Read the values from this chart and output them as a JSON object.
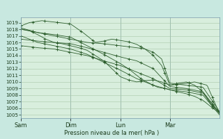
{
  "background_color": "#c8e8e0",
  "plot_bg_color": "#d8eedd",
  "grid_color": "#a8c8a8",
  "line_color": "#2d5e2d",
  "xlabel": "Pression niveau de la mer( hPa )",
  "ylim": [
    1004.5,
    1019.8
  ],
  "yticks": [
    1005,
    1006,
    1007,
    1008,
    1009,
    1010,
    1011,
    1012,
    1013,
    1014,
    1015,
    1016,
    1017,
    1018,
    1019
  ],
  "day_labels": [
    "Sam",
    "Dim",
    "Lun",
    "Mar"
  ],
  "day_positions": [
    0,
    24,
    48,
    72
  ],
  "total_hours": 96,
  "ctrl_lines": [
    {
      "x": [
        0,
        4,
        10,
        16,
        24,
        30,
        36,
        40,
        44,
        48,
        52,
        56,
        60,
        64,
        68,
        72,
        78,
        84,
        90,
        96
      ],
      "y": [
        1018.5,
        1019.0,
        1019.3,
        1019.1,
        1018.8,
        1017.5,
        1016.0,
        1016.2,
        1016.5,
        1016.3,
        1016.1,
        1015.7,
        1015.0,
        1014.0,
        1012.5,
        1009.5,
        1009.7,
        1010.0,
        1009.5,
        1005.2
      ]
    },
    {
      "x": [
        0,
        8,
        16,
        24,
        32,
        40,
        48,
        56,
        60,
        64,
        68,
        72,
        80,
        88,
        96
      ],
      "y": [
        1018.2,
        1017.5,
        1017.0,
        1016.5,
        1016.0,
        1015.8,
        1015.5,
        1015.2,
        1015.0,
        1014.5,
        1013.5,
        1009.8,
        1009.5,
        1009.2,
        1005.5
      ]
    },
    {
      "x": [
        0,
        8,
        16,
        24,
        32,
        40,
        48,
        56,
        64,
        72,
        80,
        88,
        96
      ],
      "y": [
        1016.5,
        1016.2,
        1016.0,
        1015.8,
        1015.2,
        1014.5,
        1013.8,
        1013.2,
        1012.0,
        1009.3,
        1009.0,
        1008.5,
        1005.3
      ]
    },
    {
      "x": [
        0,
        8,
        16,
        24,
        32,
        40,
        48,
        56,
        64,
        72,
        80,
        88,
        96
      ],
      "y": [
        1015.5,
        1015.2,
        1015.0,
        1014.5,
        1014.0,
        1013.2,
        1012.5,
        1011.5,
        1010.5,
        1009.0,
        1008.8,
        1008.3,
        1005.2
      ]
    },
    {
      "x": [
        0,
        8,
        16,
        24,
        32,
        40,
        48,
        56,
        64,
        72,
        80,
        88,
        96
      ],
      "y": [
        1017.0,
        1016.0,
        1015.5,
        1015.0,
        1014.2,
        1013.0,
        1011.8,
        1010.5,
        1009.5,
        1008.8,
        1008.5,
        1008.0,
        1005.0
      ]
    },
    {
      "x": [
        0,
        4,
        8,
        12,
        16,
        20,
        24,
        28,
        32,
        36,
        40,
        44,
        48,
        52,
        56,
        60,
        64,
        68,
        72,
        76,
        80,
        84,
        88,
        92,
        96
      ],
      "y": [
        1018.0,
        1017.8,
        1017.2,
        1016.5,
        1016.0,
        1015.8,
        1015.5,
        1015.2,
        1014.8,
        1014.0,
        1013.2,
        1012.0,
        1010.8,
        1010.3,
        1010.0,
        1010.2,
        1010.3,
        1010.0,
        1009.5,
        1009.8,
        1010.0,
        1009.5,
        1008.5,
        1006.5,
        1005.5
      ]
    },
    {
      "x": [
        0,
        8,
        16,
        24,
        32,
        40,
        44,
        48,
        52,
        54,
        58,
        62,
        66,
        70,
        72,
        76,
        80,
        84,
        88,
        92,
        96
      ],
      "y": [
        1018.0,
        1017.5,
        1017.2,
        1016.8,
        1015.5,
        1014.2,
        1013.5,
        1012.8,
        1012.0,
        1011.5,
        1010.5,
        1009.8,
        1009.2,
        1009.0,
        1008.8,
        1008.5,
        1008.2,
        1007.8,
        1007.2,
        1006.2,
        1005.3
      ]
    }
  ]
}
